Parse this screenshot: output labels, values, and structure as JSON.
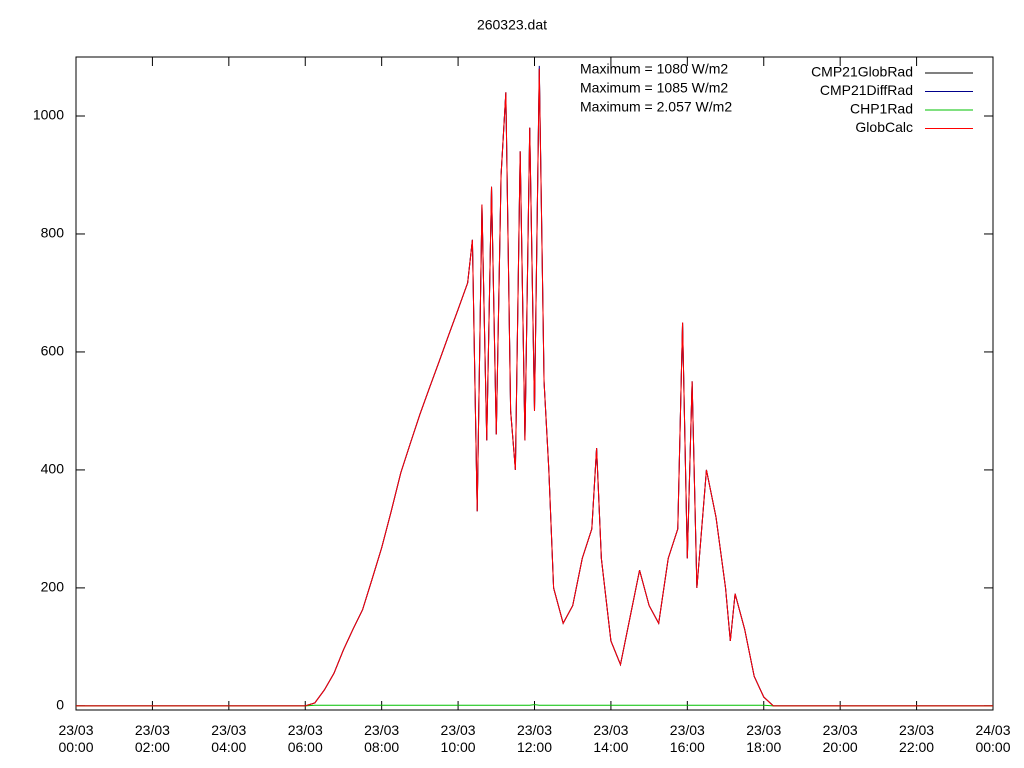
{
  "chart_data": {
    "type": "line",
    "title": "260323.dat",
    "annotations": [
      "Maximum = 1080 W/m2",
      "Maximum = 1085 W/m2",
      "Maximum = 2.057 W/m2"
    ],
    "legend": "top-right",
    "xlim": [
      0,
      24
    ],
    "xticks": [
      {
        "value": 0,
        "label": [
          "23/03",
          "00:00"
        ]
      },
      {
        "value": 2,
        "label": [
          "23/03",
          "02:00"
        ]
      },
      {
        "value": 4,
        "label": [
          "23/03",
          "04:00"
        ]
      },
      {
        "value": 6,
        "label": [
          "23/03",
          "06:00"
        ]
      },
      {
        "value": 8,
        "label": [
          "23/03",
          "08:00"
        ]
      },
      {
        "value": 10,
        "label": [
          "23/03",
          "10:00"
        ]
      },
      {
        "value": 12,
        "label": [
          "23/03",
          "12:00"
        ]
      },
      {
        "value": 14,
        "label": [
          "23/03",
          "14:00"
        ]
      },
      {
        "value": 16,
        "label": [
          "23/03",
          "16:00"
        ]
      },
      {
        "value": 18,
        "label": [
          "23/03",
          "18:00"
        ]
      },
      {
        "value": 20,
        "label": [
          "23/03",
          "20:00"
        ]
      },
      {
        "value": 22,
        "label": [
          "23/03",
          "22:00"
        ]
      },
      {
        "value": 24,
        "label": [
          "24/03",
          "00:00"
        ]
      }
    ],
    "ylim": [
      -7,
      1100
    ],
    "yticks": [
      0,
      200,
      400,
      600,
      800,
      1000
    ],
    "x": [
      0,
      1,
      2,
      3,
      4,
      5,
      6,
      6.25,
      6.5,
      6.75,
      7,
      7.25,
      7.5,
      7.75,
      8,
      8.25,
      8.5,
      8.75,
      9,
      9.25,
      9.5,
      9.75,
      10,
      10.25,
      10.375,
      10.5,
      10.625,
      10.75,
      10.875,
      11,
      11.125,
      11.25,
      11.375,
      11.5,
      11.625,
      11.75,
      11.875,
      12,
      12.125,
      12.25,
      12.375,
      12.5,
      12.75,
      13,
      13.25,
      13.5,
      13.625,
      13.75,
      14,
      14.25,
      14.5,
      14.75,
      15,
      15.25,
      15.5,
      15.75,
      15.875,
      16,
      16.125,
      16.25,
      16.5,
      16.75,
      17,
      17.125,
      17.25,
      17.5,
      17.75,
      18,
      18.25,
      19,
      20,
      21,
      22,
      23,
      24
    ],
    "series": [
      {
        "name": "CMP21GlobRad",
        "color": "#000000",
        "values": [
          0,
          0,
          0,
          0,
          0,
          0,
          0,
          5,
          27,
          55,
          95,
          130,
          163,
          215,
          268,
          330,
          395,
          445,
          494,
          539,
          583,
          628,
          672,
          717,
          790,
          330,
          850,
          450,
          880,
          460,
          900,
          1040,
          500,
          400,
          940,
          450,
          980,
          500,
          1080,
          550,
          400,
          200,
          140,
          170,
          250,
          300,
          437,
          250,
          110,
          70,
          150,
          230,
          170,
          140,
          250,
          300,
          650,
          250,
          550,
          200,
          400,
          320,
          200,
          110,
          190,
          130,
          50,
          15,
          0,
          0,
          0,
          0,
          0,
          0,
          0
        ]
      },
      {
        "name": "CMP21DiffRad",
        "color": "#00008b",
        "values": [
          0,
          0,
          0,
          0,
          0,
          0,
          0,
          5,
          27,
          55,
          95,
          130,
          163,
          215,
          268,
          330,
          395,
          445,
          494,
          539,
          583,
          628,
          672,
          717,
          790,
          330,
          850,
          450,
          880,
          460,
          900,
          1040,
          500,
          400,
          940,
          450,
          980,
          500,
          1085,
          550,
          400,
          200,
          140,
          170,
          250,
          300,
          437,
          250,
          110,
          70,
          150,
          230,
          170,
          140,
          250,
          300,
          650,
          250,
          550,
          200,
          400,
          320,
          200,
          110,
          190,
          130,
          50,
          15,
          0,
          0,
          0,
          0,
          0,
          0,
          0
        ]
      },
      {
        "name": "CHP1Rad",
        "color": "#00c000",
        "values": [
          0,
          0,
          0,
          0,
          0,
          0,
          0,
          1,
          1,
          1,
          1,
          1,
          1,
          1,
          1,
          1,
          1,
          1,
          1,
          1,
          1,
          1,
          1,
          1,
          1,
          1,
          1,
          1,
          1,
          1,
          1,
          1,
          1,
          1,
          1,
          1,
          1,
          2.057,
          1,
          1,
          1,
          1,
          1,
          1,
          1,
          1,
          1,
          1,
          1,
          1,
          1,
          1,
          1,
          1,
          1,
          1,
          1,
          1,
          1,
          1,
          1,
          1,
          1,
          1,
          1,
          1,
          1,
          1,
          0,
          0,
          0,
          0,
          0,
          0,
          0
        ]
      },
      {
        "name": "GlobCalc",
        "color": "#ff0000",
        "values": [
          0,
          0,
          0,
          0,
          0,
          0,
          0,
          5,
          27,
          55,
          95,
          130,
          163,
          215,
          268,
          330,
          395,
          445,
          494,
          539,
          583,
          628,
          672,
          717,
          790,
          330,
          850,
          450,
          880,
          460,
          900,
          1040,
          500,
          400,
          940,
          450,
          980,
          500,
          1080,
          550,
          400,
          200,
          140,
          170,
          250,
          300,
          437,
          250,
          110,
          70,
          150,
          230,
          170,
          140,
          250,
          300,
          650,
          250,
          550,
          200,
          400,
          320,
          200,
          110,
          190,
          130,
          50,
          15,
          0,
          0,
          0,
          0,
          0,
          0,
          0
        ]
      }
    ]
  }
}
